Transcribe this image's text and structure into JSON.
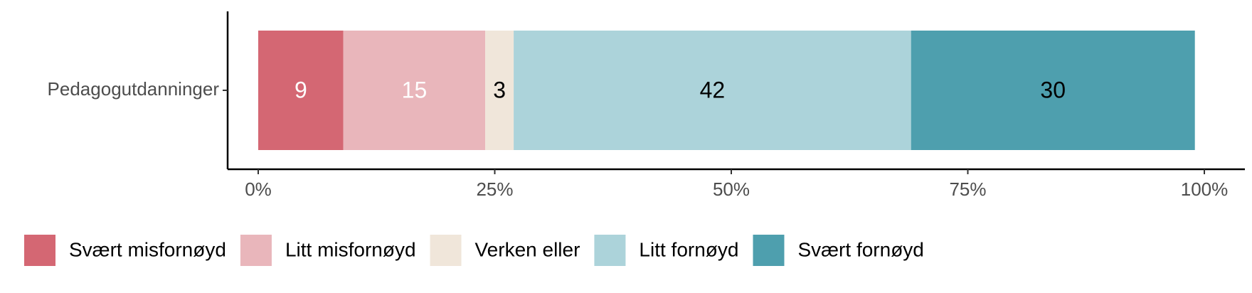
{
  "chart_data": {
    "type": "bar",
    "orientation": "horizontal",
    "stacked": true,
    "categories": [
      "Pedagogutdanninger"
    ],
    "series": [
      {
        "name": "Svært misfornøyd",
        "color": "#d46773",
        "label_color": "#ffffff",
        "values": [
          9
        ]
      },
      {
        "name": "Litt misfornøyd",
        "color": "#e9b6bb",
        "label_color": "#ffffff",
        "values": [
          15
        ]
      },
      {
        "name": "Verken eller",
        "color": "#f0e6da",
        "label_color": "#000000",
        "values": [
          3
        ]
      },
      {
        "name": "Litt fornøyd",
        "color": "#acd3da",
        "label_color": "#000000",
        "values": [
          42
        ]
      },
      {
        "name": "Svært fornøyd",
        "color": "#4e9fae",
        "label_color": "#000000",
        "values": [
          30
        ]
      }
    ],
    "xlim": [
      0,
      100
    ],
    "xticks": [
      {
        "value": 0,
        "label": "0%"
      },
      {
        "value": 25,
        "label": "25%"
      },
      {
        "value": 50,
        "label": "50%"
      },
      {
        "value": 75,
        "label": "75%"
      },
      {
        "value": 100,
        "label": "100%"
      }
    ],
    "legend": "bottom",
    "grid": false
  }
}
